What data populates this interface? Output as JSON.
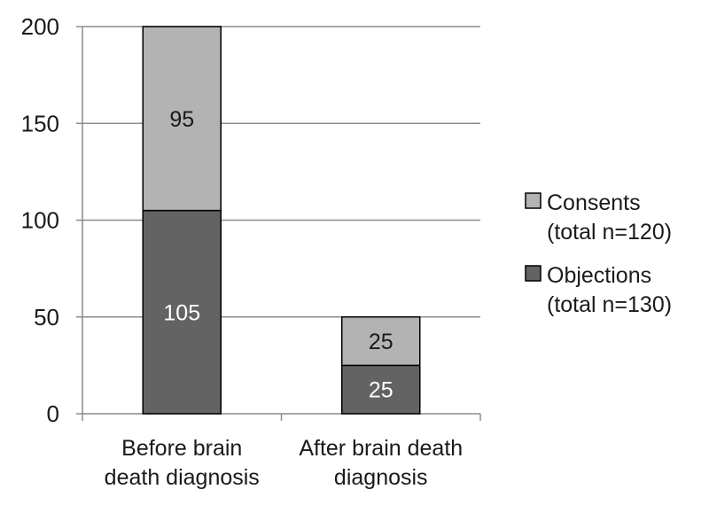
{
  "chart_data": {
    "type": "bar",
    "stacked": true,
    "title": "",
    "xlabel": "",
    "ylabel": "",
    "categories": [
      [
        "Before brain",
        "death diagnosis"
      ],
      [
        "After brain death",
        "diagnosis"
      ]
    ],
    "ylim": [
      0,
      200
    ],
    "yticks": [
      0,
      50,
      100,
      150,
      200
    ],
    "grid": true,
    "legend_position": "right",
    "series": [
      {
        "name": [
          "Objections",
          "(total n=130)"
        ],
        "values": [
          105,
          25
        ],
        "color": "#636363",
        "label_color": "#ffffff"
      },
      {
        "name": [
          "Consents",
          "(total n=120)"
        ],
        "values": [
          95,
          25
        ],
        "color": "#b3b3b3",
        "label_color": "#1a1a1a"
      }
    ],
    "legend_order": [
      1,
      0
    ]
  }
}
